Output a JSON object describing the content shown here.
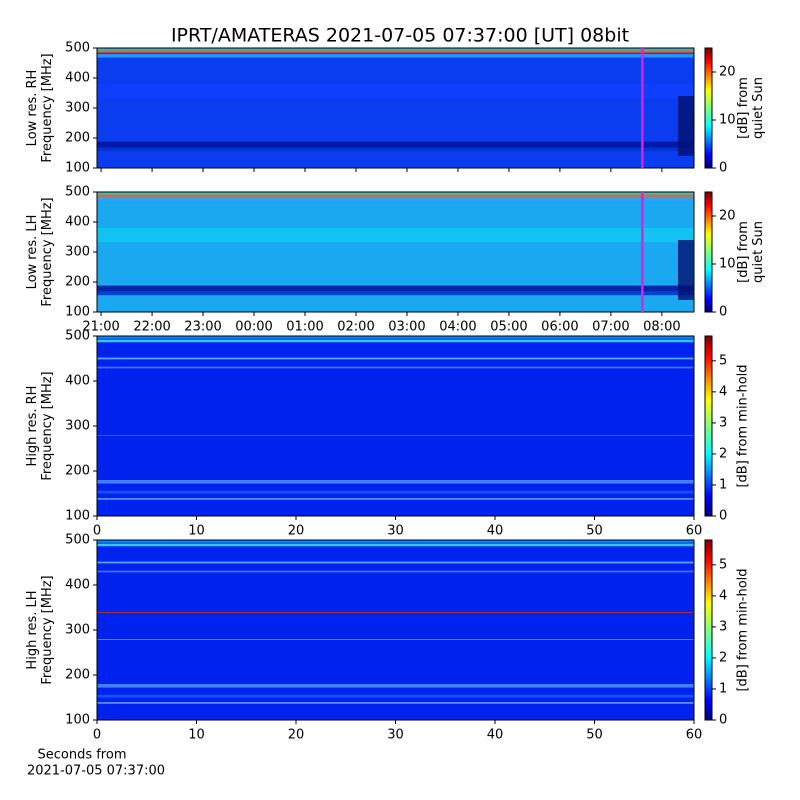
{
  "chart_data": [
    {
      "type": "heatmap",
      "title": "IPRT/AMATERAS 2021-07-05 07:37:00 [UT]   08bit",
      "ylabel": [
        "Low res. RH",
        "Frequency [MHz]"
      ],
      "ylim": [
        100,
        500
      ],
      "yticks": [
        100,
        200,
        300,
        400,
        500
      ],
      "xlim": [
        20.92,
        32.63
      ],
      "xticks": [
        21,
        22,
        23,
        24,
        25,
        26,
        27,
        28,
        29,
        30,
        31,
        32
      ],
      "marker": 31.6167,
      "marker_color": "#e020e0",
      "colorbar_label": [
        "[dB] from",
        "quiet Sun"
      ],
      "clim": [
        0,
        25
      ],
      "cticks": [
        0,
        10,
        20
      ]
    },
    {
      "type": "heatmap",
      "ylabel": [
        "Low res. LH",
        "Frequency [MHz]"
      ],
      "ylim": [
        100,
        500
      ],
      "yticks": [
        100,
        200,
        300,
        400,
        500
      ],
      "xlim": [
        20.92,
        32.63
      ],
      "xticks": [
        {
          "value": 21,
          "label": "21:00"
        },
        {
          "value": 22,
          "label": "22:00"
        },
        {
          "value": 23,
          "label": "23:00"
        },
        {
          "value": 24,
          "label": "00:00"
        },
        {
          "value": 25,
          "label": "01:00"
        },
        {
          "value": 26,
          "label": "02:00"
        },
        {
          "value": 27,
          "label": "03:00"
        },
        {
          "value": 28,
          "label": "04:00"
        },
        {
          "value": 29,
          "label": "05:00"
        },
        {
          "value": 30,
          "label": "06:00"
        },
        {
          "value": 31,
          "label": "07:00"
        },
        {
          "value": 32,
          "label": "08:00"
        }
      ],
      "marker": 31.6167,
      "marker_color": "#e020e0",
      "colorbar_label": [
        "[dB] from",
        "quiet Sun"
      ],
      "clim": [
        0,
        25
      ],
      "cticks": [
        0,
        10,
        20
      ]
    },
    {
      "type": "heatmap",
      "ylabel": [
        "High res. RH",
        "Frequency [MHz]"
      ],
      "ylim": [
        100,
        500
      ],
      "yticks": [
        100,
        200,
        300,
        400,
        500
      ],
      "xlim": [
        0,
        60
      ],
      "xticks": [
        0,
        10,
        20,
        30,
        40,
        50,
        60
      ],
      "colorbar_label": [
        "[dB] from min-hold"
      ],
      "clim": [
        0,
        5.8
      ],
      "cticks": [
        0,
        1,
        2,
        3,
        4,
        5
      ]
    },
    {
      "type": "heatmap",
      "ylabel": [
        "High res. LH",
        "Frequency [MHz]"
      ],
      "ylim": [
        100,
        500
      ],
      "yticks": [
        100,
        200,
        300,
        400,
        500
      ],
      "xlim": [
        0,
        60
      ],
      "xticks": [
        0,
        10,
        20,
        30,
        40,
        50,
        60
      ],
      "xlabel": [
        "Seconds from",
        "2021-07-05 07:37:00"
      ],
      "colorbar_label": [
        "[dB] from min-hold"
      ],
      "clim": [
        0,
        5.8
      ],
      "cticks": [
        0,
        1,
        2,
        3,
        4,
        5
      ]
    }
  ]
}
